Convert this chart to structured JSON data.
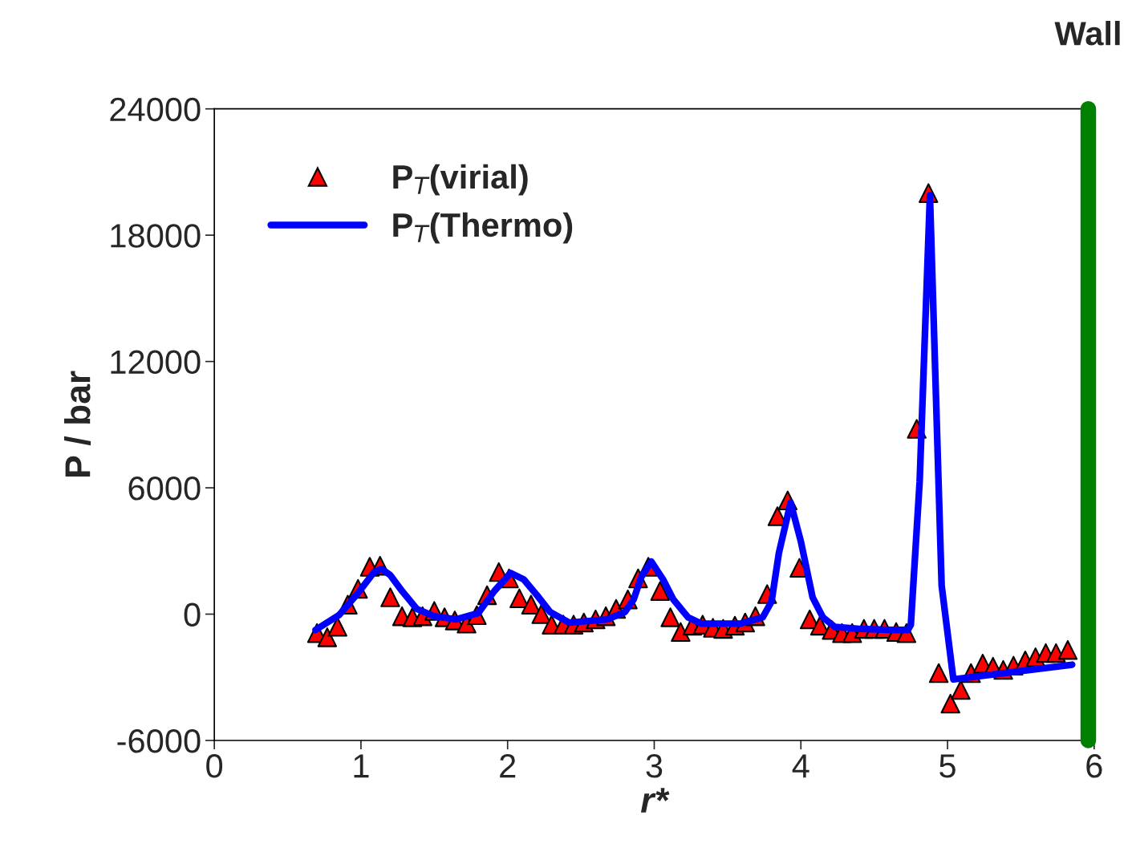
{
  "chart_data": {
    "type": "scatter",
    "xlabel": "r*",
    "ylabel": "P / bar",
    "xlim": [
      0,
      6
    ],
    "ylim": [
      -6000,
      24000
    ],
    "xticks": [
      0,
      1,
      2,
      3,
      4,
      5,
      6
    ],
    "yticks": [
      -6000,
      0,
      6000,
      12000,
      18000,
      24000
    ],
    "grid": false,
    "legend": "top left",
    "series": [
      {
        "name": "P$_{T}$(virial)",
        "marker": "triangle",
        "color": "#ff0000",
        "x": [
          0.7,
          0.77,
          0.84,
          0.91,
          0.98,
          1.06,
          1.13,
          1.2,
          1.28,
          1.35,
          1.42,
          1.5,
          1.57,
          1.64,
          1.72,
          1.79,
          1.86,
          1.94,
          2.01,
          2.08,
          2.16,
          2.23,
          2.3,
          2.38,
          2.45,
          2.52,
          2.6,
          2.67,
          2.74,
          2.82,
          2.89,
          2.96,
          3.04,
          3.11,
          3.18,
          3.26,
          3.33,
          3.4,
          3.47,
          3.55,
          3.62,
          3.69,
          3.77,
          3.84,
          3.91,
          3.99,
          4.06,
          4.13,
          4.21,
          4.28,
          4.35,
          4.43,
          4.5,
          4.57,
          4.65,
          4.72,
          4.79,
          4.87,
          4.94,
          5.02,
          5.09,
          5.16,
          5.24,
          5.31,
          5.38,
          5.45,
          5.53,
          5.6,
          5.67,
          5.74,
          5.82
        ],
        "values": [
          -900,
          -1100,
          -600,
          450,
          1200,
          2250,
          2300,
          800,
          -100,
          -150,
          -100,
          150,
          -150,
          -300,
          -450,
          -50,
          900,
          2000,
          1700,
          750,
          450,
          0,
          -500,
          -500,
          -500,
          -400,
          -250,
          -100,
          250,
          700,
          1700,
          2250,
          1100,
          -150,
          -850,
          -550,
          -500,
          -650,
          -700,
          -550,
          -400,
          -100,
          950,
          4650,
          5400,
          2200,
          -250,
          -550,
          -750,
          -900,
          -900,
          -700,
          -700,
          -700,
          -850,
          -900,
          8800,
          20000,
          -2800,
          -4250,
          -3600,
          -2800,
          -2350,
          -2500,
          -2650,
          -2450,
          -2200,
          -2050,
          -1850,
          -1850,
          -1700
        ]
      },
      {
        "name": "P$_{T}$(Thermo)",
        "type": "line",
        "line_style": "solid",
        "color": "#0000ff",
        "x": [
          0.69,
          0.85,
          0.98,
          1.09,
          1.14,
          1.2,
          1.28,
          1.38,
          1.5,
          1.65,
          1.8,
          1.91,
          2.02,
          2.11,
          2.2,
          2.29,
          2.42,
          2.68,
          2.8,
          2.86,
          2.91,
          2.98,
          3.06,
          3.13,
          3.23,
          3.32,
          3.59,
          3.74,
          3.8,
          3.85,
          3.93,
          4.0,
          4.08,
          4.15,
          4.23,
          4.4,
          4.62,
          4.73,
          4.75,
          4.81,
          4.88,
          4.96,
          5.04,
          5.85
        ],
        "values": [
          -750,
          -50,
          1000,
          2000,
          2150,
          1850,
          1100,
          250,
          -100,
          -250,
          50,
          1100,
          1950,
          1650,
          900,
          100,
          -400,
          -250,
          100,
          700,
          1750,
          2500,
          1650,
          700,
          -150,
          -450,
          -450,
          -150,
          600,
          2900,
          5300,
          3450,
          800,
          -150,
          -600,
          -700,
          -750,
          -750,
          -500,
          6300,
          19900,
          1350,
          -3100,
          -2400
        ]
      }
    ],
    "ref_lines": [
      {
        "axis": "x",
        "value": 5.96,
        "label": "Wall",
        "color": "#008000"
      }
    ]
  }
}
